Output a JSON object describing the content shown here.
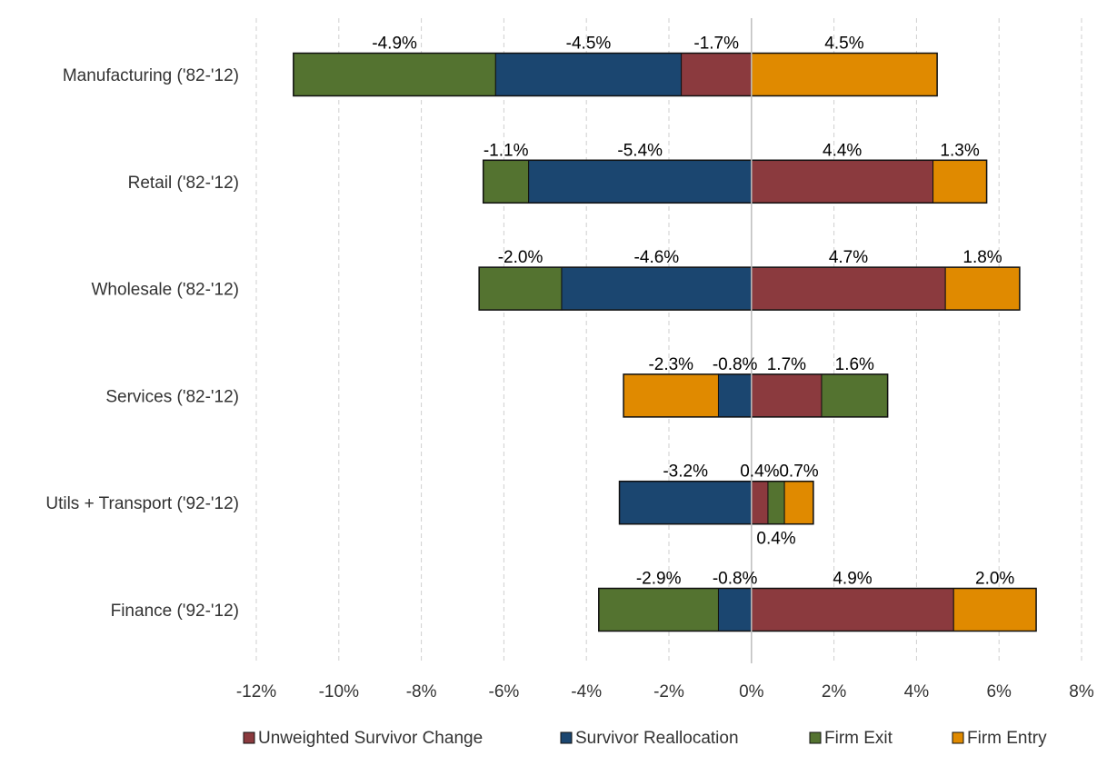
{
  "chart_data": {
    "type": "bar",
    "orientation": "horizontal",
    "stacked": "diverging",
    "title": "",
    "xlabel": "",
    "ylabel": "",
    "xlim": [
      -12,
      8
    ],
    "x_ticks": [
      -12,
      -10,
      -8,
      -6,
      -4,
      -2,
      0,
      2,
      4,
      6,
      8
    ],
    "x_tick_labels": [
      "-12%",
      "-10%",
      "-8%",
      "-6%",
      "-4%",
      "-2%",
      "0%",
      "2%",
      "4%",
      "6%",
      "8%"
    ],
    "grid": true,
    "legend_position": "bottom",
    "series_styles": [
      {
        "key": "usc",
        "name": "Unweighted Survivor Change",
        "color": "#8b3a3e"
      },
      {
        "key": "sr",
        "name": "Survivor Reallocation",
        "color": "#1b4670"
      },
      {
        "key": "fx",
        "name": "Firm Exit",
        "color": "#547330"
      },
      {
        "key": "fe",
        "name": "Firm Entry",
        "color": "#e08a00"
      }
    ],
    "categories": [
      {
        "label": "Manufacturing ('82-'12)",
        "segments": [
          {
            "series": "fx",
            "value": -4.9,
            "label": "-4.9%"
          },
          {
            "series": "sr",
            "value": -4.5,
            "label": "-4.5%"
          },
          {
            "series": "usc",
            "value": -1.7,
            "label": "-1.7%"
          },
          {
            "series": "fe",
            "value": 4.5,
            "label": "4.5%"
          }
        ]
      },
      {
        "label": "Retail ('82-'12)",
        "segments": [
          {
            "series": "fx",
            "value": -1.1,
            "label": "-1.1%"
          },
          {
            "series": "sr",
            "value": -5.4,
            "label": "-5.4%"
          },
          {
            "series": "usc",
            "value": 4.4,
            "label": "4.4%"
          },
          {
            "series": "fe",
            "value": 1.3,
            "label": "1.3%"
          }
        ]
      },
      {
        "label": "Wholesale ('82-'12)",
        "segments": [
          {
            "series": "fx",
            "value": -2.0,
            "label": "-2.0%"
          },
          {
            "series": "sr",
            "value": -4.6,
            "label": "-4.6%"
          },
          {
            "series": "usc",
            "value": 4.7,
            "label": "4.7%"
          },
          {
            "series": "fe",
            "value": 1.8,
            "label": "1.8%"
          }
        ]
      },
      {
        "label": "Services ('82-'12)",
        "segments": [
          {
            "series": "fe",
            "value": -2.3,
            "label": "-2.3%"
          },
          {
            "series": "sr",
            "value": -0.8,
            "label": "-0.8%"
          },
          {
            "series": "usc",
            "value": 1.7,
            "label": "1.7%"
          },
          {
            "series": "fx",
            "value": 1.6,
            "label": "1.6%"
          }
        ]
      },
      {
        "label": "Utils + Transport ('92-'12)",
        "segments": [
          {
            "series": "sr",
            "value": -3.2,
            "label": "-3.2%"
          },
          {
            "series": "usc",
            "value": 0.4,
            "label": "0.4%"
          },
          {
            "series": "fx",
            "value": 0.4,
            "label": "0.4%",
            "label_below": true
          },
          {
            "series": "fe",
            "value": 0.7,
            "label": "0.7%"
          }
        ]
      },
      {
        "label": "Finance ('92-'12)",
        "segments": [
          {
            "series": "fx",
            "value": -2.9,
            "label": "-2.9%"
          },
          {
            "series": "sr",
            "value": -0.8,
            "label": "-0.8%"
          },
          {
            "series": "usc",
            "value": 4.9,
            "label": "4.9%"
          },
          {
            "series": "fe",
            "value": 2.0,
            "label": "2.0%"
          }
        ]
      }
    ]
  }
}
